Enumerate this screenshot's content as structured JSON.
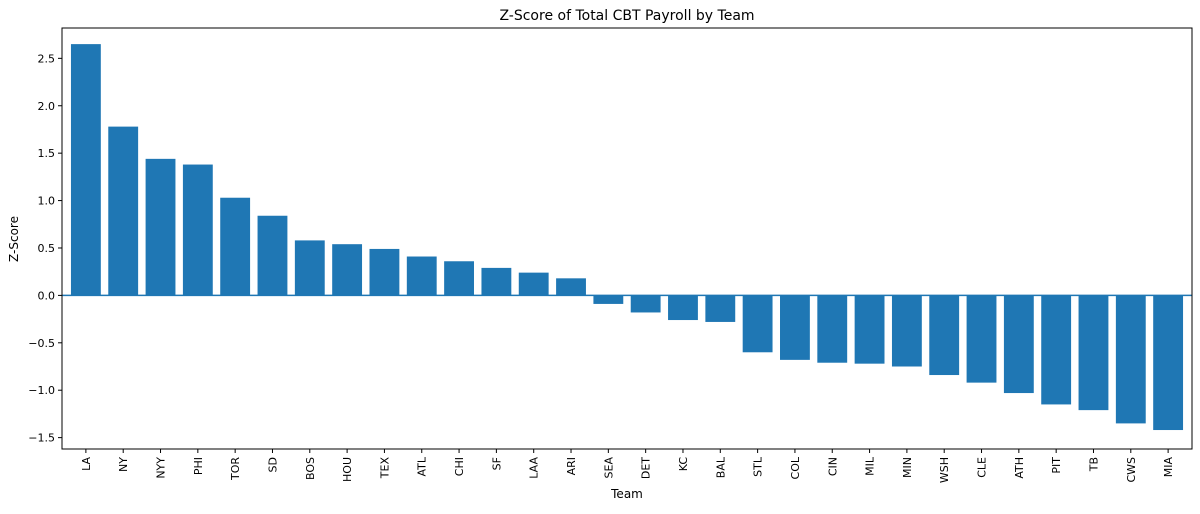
{
  "chart_data": {
    "type": "bar",
    "title": "Z-Score of Total CBT Payroll by Team",
    "xlabel": "Team",
    "ylabel": "Z-Score",
    "ylim": [
      -1.62,
      2.82
    ],
    "yticks": [
      -1.5,
      -1.0,
      -0.5,
      0.0,
      0.5,
      1.0,
      1.5,
      2.0,
      2.5
    ],
    "ytick_labels": [
      "−1.5",
      "−1.0",
      "−0.5",
      "0.0",
      "0.5",
      "1.0",
      "1.5",
      "2.0",
      "2.5"
    ],
    "reference_line": 0.0,
    "categories": [
      "LA",
      "NY",
      "NYY",
      "PHI",
      "TOR",
      "SD",
      "BOS",
      "HOU",
      "TEX",
      "ATL",
      "CHI",
      "SF",
      "LAA",
      "ARI",
      "SEA",
      "DET",
      "KC",
      "BAL",
      "STL",
      "COL",
      "CIN",
      "MIL",
      "MIN",
      "WSH",
      "CLE",
      "ATH",
      "PIT",
      "TB",
      "CWS",
      "MIA"
    ],
    "values": [
      2.65,
      1.78,
      1.44,
      1.38,
      1.03,
      0.84,
      0.58,
      0.54,
      0.49,
      0.41,
      0.36,
      0.29,
      0.24,
      0.18,
      -0.09,
      -0.18,
      -0.26,
      -0.28,
      -0.6,
      -0.68,
      -0.71,
      -0.72,
      -0.75,
      -0.84,
      -0.92,
      -1.03,
      -1.15,
      -1.21,
      -1.35,
      -1.42
    ],
    "bar_color": "#1f77b4",
    "grid": false
  }
}
